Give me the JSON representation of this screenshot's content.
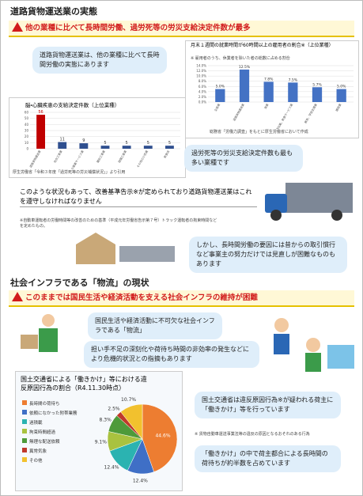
{
  "section1": {
    "heading": "道路貨物運送業の実態",
    "banner": "他の業種に比べて長時間労働、過労死等の労災支給決定件数が最多",
    "bubble1": "道路貨物運送業は、他の業種に比べて長時間労働の実態にあります",
    "bubble2": "過労死等の労災支給決定件数も最も多い業種です",
    "notice": "このような状況もあって、改善基準告示※が定められており道路貨物運送業はこれを遵守しなければなりません",
    "note": "※自動車運転者の労働時間等の改善のための基準（平成元年労働省告示第７号）トラック運転者の拘束時間などを定めたもの。",
    "bubble3": "しかし、長時間労働の要因には昔からの取引慣行など事業主の努力だけでは見直しが困難なものもあります"
  },
  "section2": {
    "heading": "社会インフラである「物流」の現状",
    "banner": "このままでは国民生活や経済活動を支える社会インフラの維持が困難",
    "bubble1": "国民生活や経済活動に不可欠な社会インフラである「物流」",
    "bubble2": "担い手不足の深刻化や荷待ち時間の非効率の発生などにより危機的状況との指摘もあります",
    "bubble3": "国土交通省は違反原因行為※が疑われる荷主に「働きかけ」等を行っています",
    "note": "※ 貨物自動車運送事業法等の違反の原因となるおそれのある行為",
    "bubble4": "「働きかけ」の中で荷主都合による長時間の荷待ちが約半数を占めています"
  },
  "chart_data": [
    {
      "type": "bar",
      "title": "月末１週間の就業時間が60時間以上の雇用者の割合※（上位業種）",
      "subtitle": "※ 雇用者のうち、休業者を除いた者の総数に占める割合",
      "source": "総務省「労働力調査」をもとに厚生労働省において作成",
      "categories": [
        "全産業",
        "道路貨物運送業",
        "漁業",
        "宿泊業，飲食サービス業",
        "教育，学習支援業",
        "建設業"
      ],
      "values": [
        5.0,
        12.5,
        7.8,
        7.5,
        5.7,
        5.0
      ],
      "value_labels": [
        "5.0%",
        "12.5%",
        "7.8%",
        "7.5%",
        "5.7%",
        "5.0%"
      ],
      "color": "#4472c4",
      "ylim": [
        0,
        14
      ],
      "yticks": [
        {
          "value": 0,
          "label": "0.0%"
        },
        {
          "value": 2,
          "label": "2.0%"
        },
        {
          "value": 4,
          "label": "4.0%"
        },
        {
          "value": 6,
          "label": "6.0%"
        },
        {
          "value": 8,
          "label": "8.0%"
        },
        {
          "value": 10,
          "label": "10.0%"
        },
        {
          "value": 12,
          "label": "12.0%"
        },
        {
          "value": 14,
          "label": "14.0%"
        }
      ],
      "grid": true
    },
    {
      "type": "bar",
      "title": "脳・心臓疾患の支給決定件数（上位業種）",
      "source": "厚生労働省「令和３年度「過労死等の労災補償状況」」より引用",
      "categories": [
        "道路貨物運送業",
        "総合工事業",
        "その他の事業サービス業",
        "職別工事業",
        "設備工事業",
        "その他の小売業",
        "飲食店"
      ],
      "values": [
        56,
        11,
        9,
        5,
        5,
        5,
        5
      ],
      "colors": [
        "#c00000",
        "#2f4f8f",
        "#2f4f8f",
        "#2f4f8f",
        "#2f4f8f",
        "#2f4f8f",
        "#2f4f8f"
      ],
      "ylim": [
        0,
        60
      ],
      "yticks": [
        0,
        10,
        20,
        30,
        40,
        50,
        60
      ],
      "grid": true
    },
    {
      "type": "pie",
      "title": "国土交通省による「働きかけ」等における違反原因行為の割合（R4.11.30時点）",
      "categories": [
        "長時間の荷待ち",
        "依頼になかった附帯業務",
        "過積載",
        "拘束時間超過",
        "無理な配送依頼",
        "異常気象",
        "その他"
      ],
      "values": [
        44.6,
        12.4,
        12.4,
        9.1,
        8.3,
        2.5,
        10.7
      ],
      "value_labels": [
        "44.6%",
        "12.4%",
        "12.4%",
        "9.1%",
        "8.3%",
        "2.5%",
        "10.7%"
      ],
      "colors": [
        "#ed7d31",
        "#3f6fc6",
        "#2bb3b1",
        "#a9c23f",
        "#4e9a3a",
        "#c0392b",
        "#f2c12e"
      ]
    }
  ]
}
